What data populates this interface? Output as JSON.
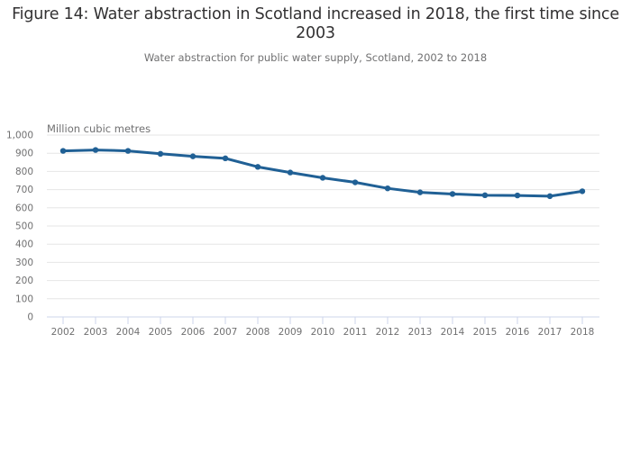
{
  "title": "Figure 14: Water abstraction in Scotland increased in 2018, the first time since 2003",
  "subtitle": "Water abstraction for public water supply, Scotland, 2002 to 2018",
  "chart_data": {
    "type": "line",
    "title": "Figure 14: Water abstraction in Scotland increased in 2018, the first time since 2003",
    "subtitle": "Water abstraction for public water supply, Scotland, 2002 to 2018",
    "xlabel": "",
    "ylabel": "Million cubic metres",
    "x": [
      "2002",
      "2003",
      "2004",
      "2005",
      "2006",
      "2007",
      "2008",
      "2009",
      "2010",
      "2011",
      "2012",
      "2013",
      "2014",
      "2015",
      "2016",
      "2017",
      "2018"
    ],
    "series": [
      {
        "name": "Water abstraction for public water supply",
        "color": "#206095",
        "values": [
          913,
          918,
          913,
          897,
          883,
          872,
          825,
          794,
          765,
          740,
          707,
          685,
          676,
          669,
          668,
          664,
          691
        ]
      }
    ],
    "ylim": [
      0,
      1000
    ],
    "yticks": [
      0,
      100,
      200,
      300,
      400,
      500,
      600,
      700,
      800,
      900,
      1000
    ],
    "ytick_labels": [
      "0",
      "100",
      "200",
      "300",
      "400",
      "500",
      "600",
      "700",
      "800",
      "900",
      "1,000"
    ],
    "grid": true,
    "legend": "none"
  }
}
